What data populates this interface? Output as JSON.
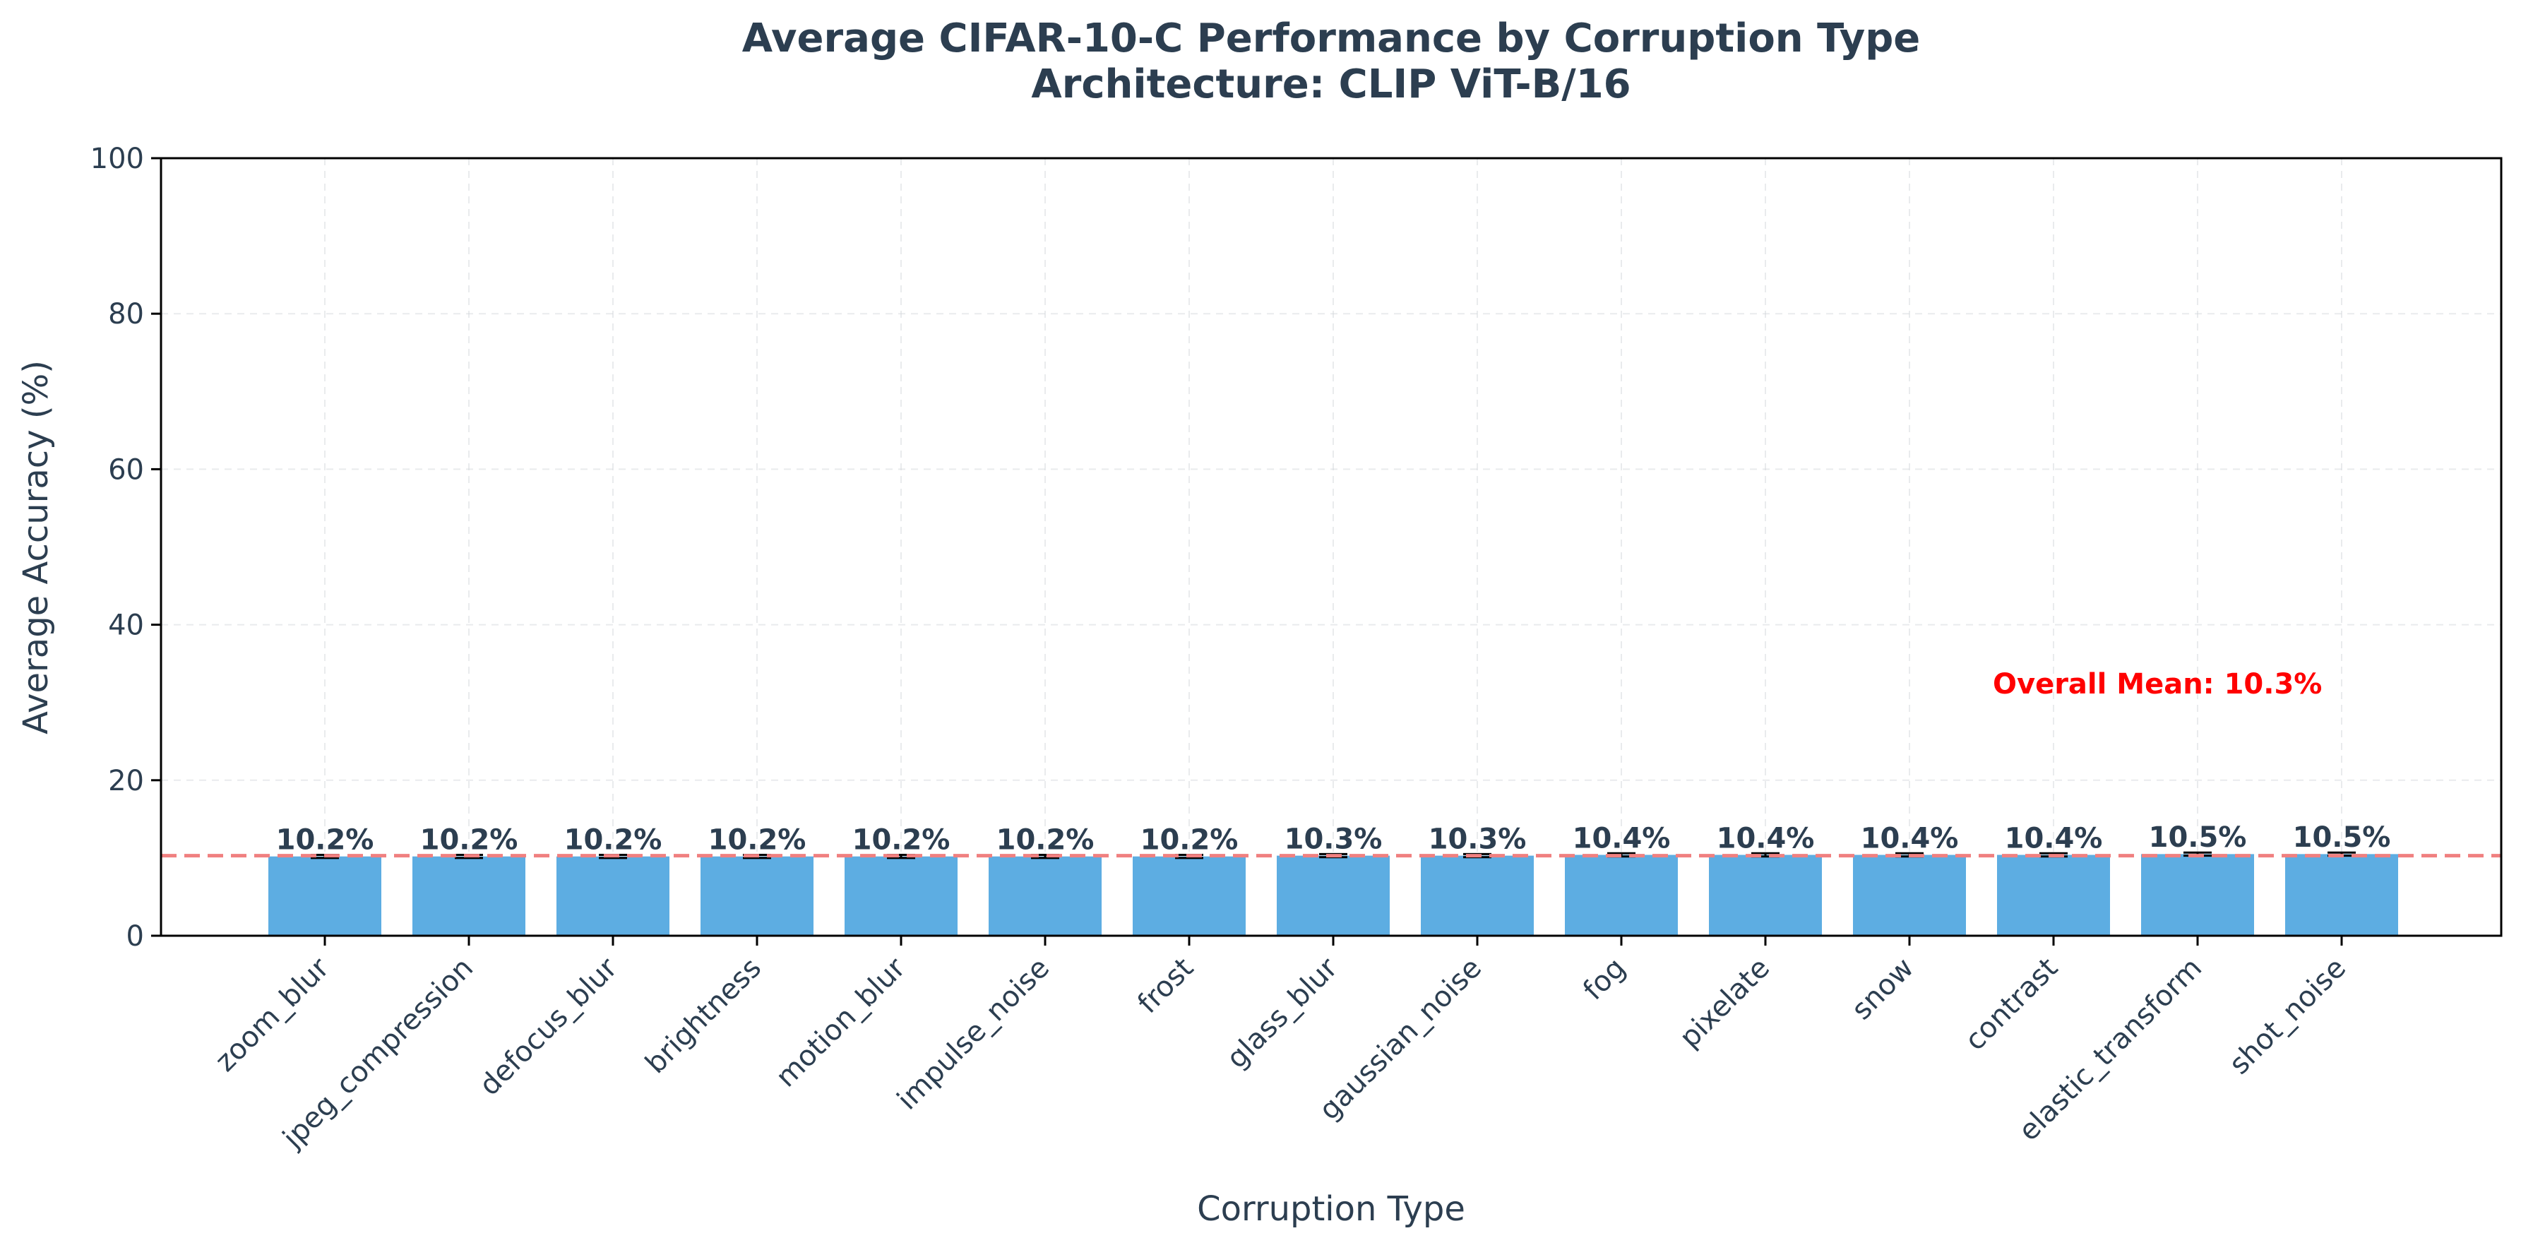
{
  "chart_data": {
    "type": "bar",
    "title": "Average CIFAR-10-C Performance by Corruption Type",
    "subtitle": "Architecture: CLIP ViT-B/16",
    "xlabel": "Corruption Type",
    "ylabel": "Average Accuracy (%)",
    "ylim": [
      0,
      100
    ],
    "yticks": [
      0,
      20,
      40,
      60,
      80,
      100
    ],
    "grid": true,
    "categories": [
      "zoom_blur",
      "jpeg_compression",
      "defocus_blur",
      "brightness",
      "motion_blur",
      "impulse_noise",
      "frost",
      "glass_blur",
      "gaussian_noise",
      "fog",
      "pixelate",
      "snow",
      "contrast",
      "elastic_transform",
      "shot_noise"
    ],
    "values": [
      10.2,
      10.2,
      10.2,
      10.2,
      10.2,
      10.2,
      10.2,
      10.3,
      10.3,
      10.4,
      10.4,
      10.4,
      10.4,
      10.5,
      10.5
    ],
    "value_labels": [
      "10.2%",
      "10.2%",
      "10.2%",
      "10.2%",
      "10.2%",
      "10.2%",
      "10.2%",
      "10.3%",
      "10.3%",
      "10.4%",
      "10.4%",
      "10.4%",
      "10.4%",
      "10.5%",
      "10.5%"
    ],
    "error": [
      0.2,
      0.2,
      0.2,
      0.2,
      0.2,
      0.2,
      0.2,
      0.2,
      0.2,
      0.2,
      0.2,
      0.2,
      0.2,
      0.2,
      0.2
    ],
    "reference_line": {
      "value": 10.3,
      "label": "Overall Mean: 10.3%",
      "style": "dashed"
    },
    "colors": {
      "bar": "#5dade2",
      "text": "#2c3e50",
      "mean_line": "#f08080",
      "mean_text": "#ff0000",
      "error_bar": "#000000",
      "grid": "#d5d8dc"
    }
  }
}
